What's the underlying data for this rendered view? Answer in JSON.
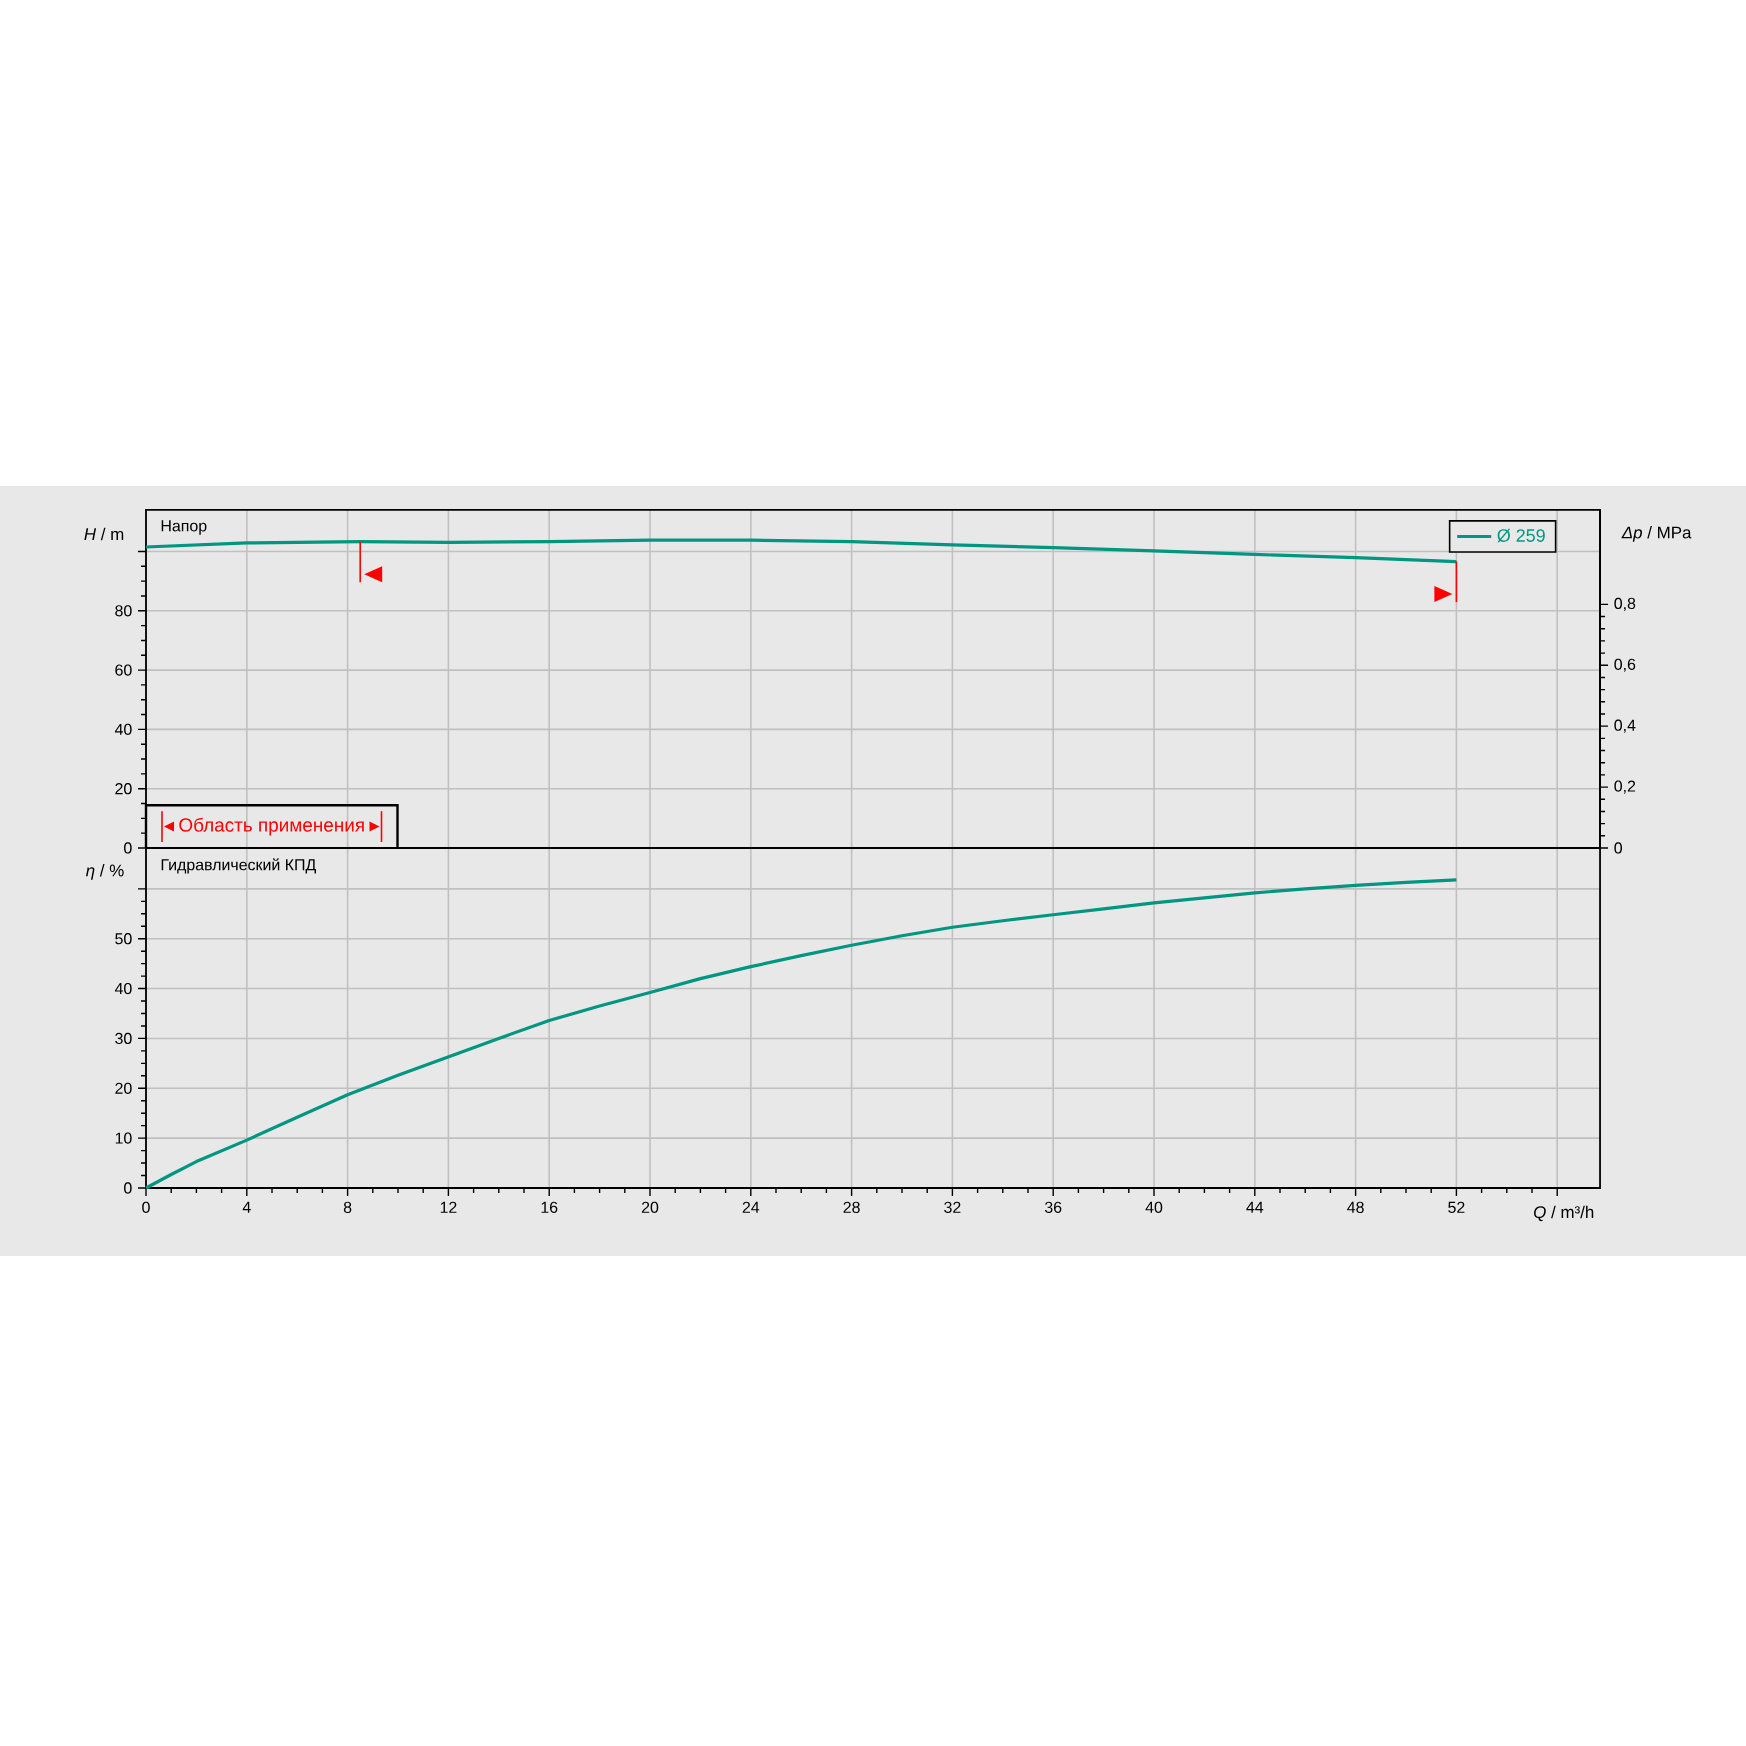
{
  "chart_data": [
    {
      "type": "line",
      "annotations": [
        "Напор",
        "Область применения"
      ],
      "ylabel": "*H* / m",
      "y2label": "*Δp* / MPa",
      "x": [
        0,
        4,
        8.5,
        12,
        16,
        20,
        24,
        28,
        32,
        36,
        40,
        44,
        48,
        52
      ],
      "series": [
        {
          "name": "Ø 259",
          "color": "#009682",
          "values": [
            101.5,
            102.9,
            103.3,
            103.1,
            103.3,
            103.8,
            103.8,
            103.3,
            102.2,
            101.3,
            100.2,
            99,
            97.9,
            96.6
          ]
        }
      ],
      "xlim": [
        0,
        57.7
      ],
      "xticks": [
        0,
        4,
        8,
        12,
        16,
        20,
        24,
        28,
        32,
        36,
        40,
        44,
        48,
        52,
        56
      ],
      "ylim": [
        0,
        114
      ],
      "yticks": [
        0,
        20,
        40,
        60,
        80,
        {
          "value": 100,
          "label": null
        }
      ],
      "y2lim": [
        0,
        1.11
      ],
      "y2ticks": [
        0,
        {
          "value": 0.2,
          "label": "0,2"
        },
        {
          "value": 0.4,
          "label": "0,4"
        },
        {
          "value": 0.6,
          "label": "0,6"
        },
        {
          "value": 0.8,
          "label": "0,8"
        }
      ],
      "ref_lines": [
        {
          "axis": "x",
          "value": 8.5,
          "color": "#ff0000"
        },
        {
          "axis": "x",
          "value": 52,
          "color": "#ff0000"
        }
      ],
      "grid": true,
      "legend": "top right",
      "tick_labels": "y"
    },
    {
      "type": "line",
      "annotations": [
        "Гидравлический КПД"
      ],
      "xlabel": "*Q* / m³/h",
      "ylabel": "*η* / %",
      "x": [
        0,
        1,
        2,
        4,
        6,
        8,
        10,
        12,
        14,
        16,
        18,
        20,
        22,
        24,
        26,
        28,
        30,
        32,
        34,
        36,
        38,
        40,
        42,
        44,
        46,
        48,
        50,
        52
      ],
      "series": [
        {
          "color": "#009682",
          "values": [
            0,
            2.7,
            5.3,
            9.6,
            14.2,
            18.7,
            22.6,
            26.3,
            30,
            33.6,
            36.5,
            39.2,
            42,
            44.4,
            46.6,
            48.7,
            50.6,
            52.3,
            53.6,
            54.8,
            56,
            57.2,
            58.2,
            59.2,
            60,
            60.7,
            61.3,
            61.8
          ]
        }
      ],
      "xlim": [
        0,
        57.7
      ],
      "xticks": [
        0,
        4,
        8,
        12,
        16,
        20,
        24,
        28,
        32,
        36,
        40,
        44,
        48,
        52,
        {
          "value": 56,
          "label": null
        }
      ],
      "ylim": [
        0,
        68.2
      ],
      "yticks": [
        0,
        10,
        20,
        30,
        40,
        50,
        {
          "value": 60,
          "label": null
        }
      ],
      "grid": true
    }
  ]
}
